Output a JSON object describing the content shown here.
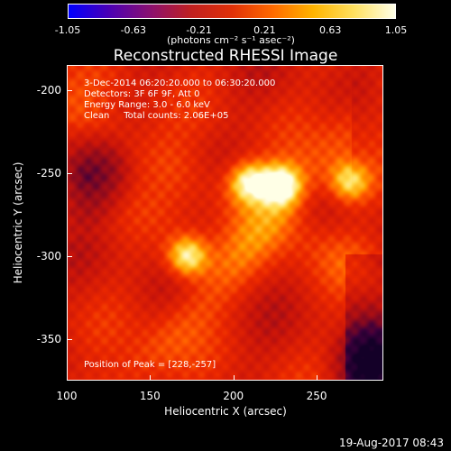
{
  "colorbar": {
    "ticks": [
      "-1.05",
      "-0.63",
      "-0.21",
      "0.21",
      "0.63",
      "1.05"
    ],
    "unit_label": "(photons cm⁻² s⁻¹ asec⁻²)",
    "range": [
      -1.05,
      1.05
    ]
  },
  "title": "Reconstructed RHESSI Image",
  "annotations": {
    "line1": "3-Dec-2014 06:20:20.000 to 06:30:20.000",
    "line2": "Detectors: 3F 6F 9F, Att 0",
    "line3": "Energy Range: 3.0 - 6.0 keV",
    "line4": "Clean     Total counts: 2.06E+05",
    "peak": "Position of Peak = [228,-257]"
  },
  "axes": {
    "xlabel": "Heliocentric X (arcsec)",
    "ylabel": "Heliocentric Y (arcsec)",
    "xticks": [
      "100",
      "150",
      "200",
      "250"
    ],
    "yticks": [
      "-200",
      "-250",
      "-300",
      "-350"
    ],
    "xlim": [
      100,
      290
    ],
    "ylim": [
      -375,
      -185
    ]
  },
  "datestamp": "19-Aug-2017 08:43",
  "colors": {
    "colormap": [
      "#0000ff",
      "#4b00b4",
      "#8a1070",
      "#c02020",
      "#e03008",
      "#ff6a00",
      "#ffb400",
      "#ffe060",
      "#ffffe8"
    ]
  },
  "image": {
    "peak": [
      228,
      -257
    ],
    "sources": [
      {
        "x": 228,
        "y": -257,
        "strength": 1.0
      },
      {
        "x": 209,
        "y": -255,
        "strength": 0.85
      },
      {
        "x": 172,
        "y": -300,
        "strength": 0.9
      },
      {
        "x": 270,
        "y": -255,
        "strength": 0.72
      }
    ]
  }
}
